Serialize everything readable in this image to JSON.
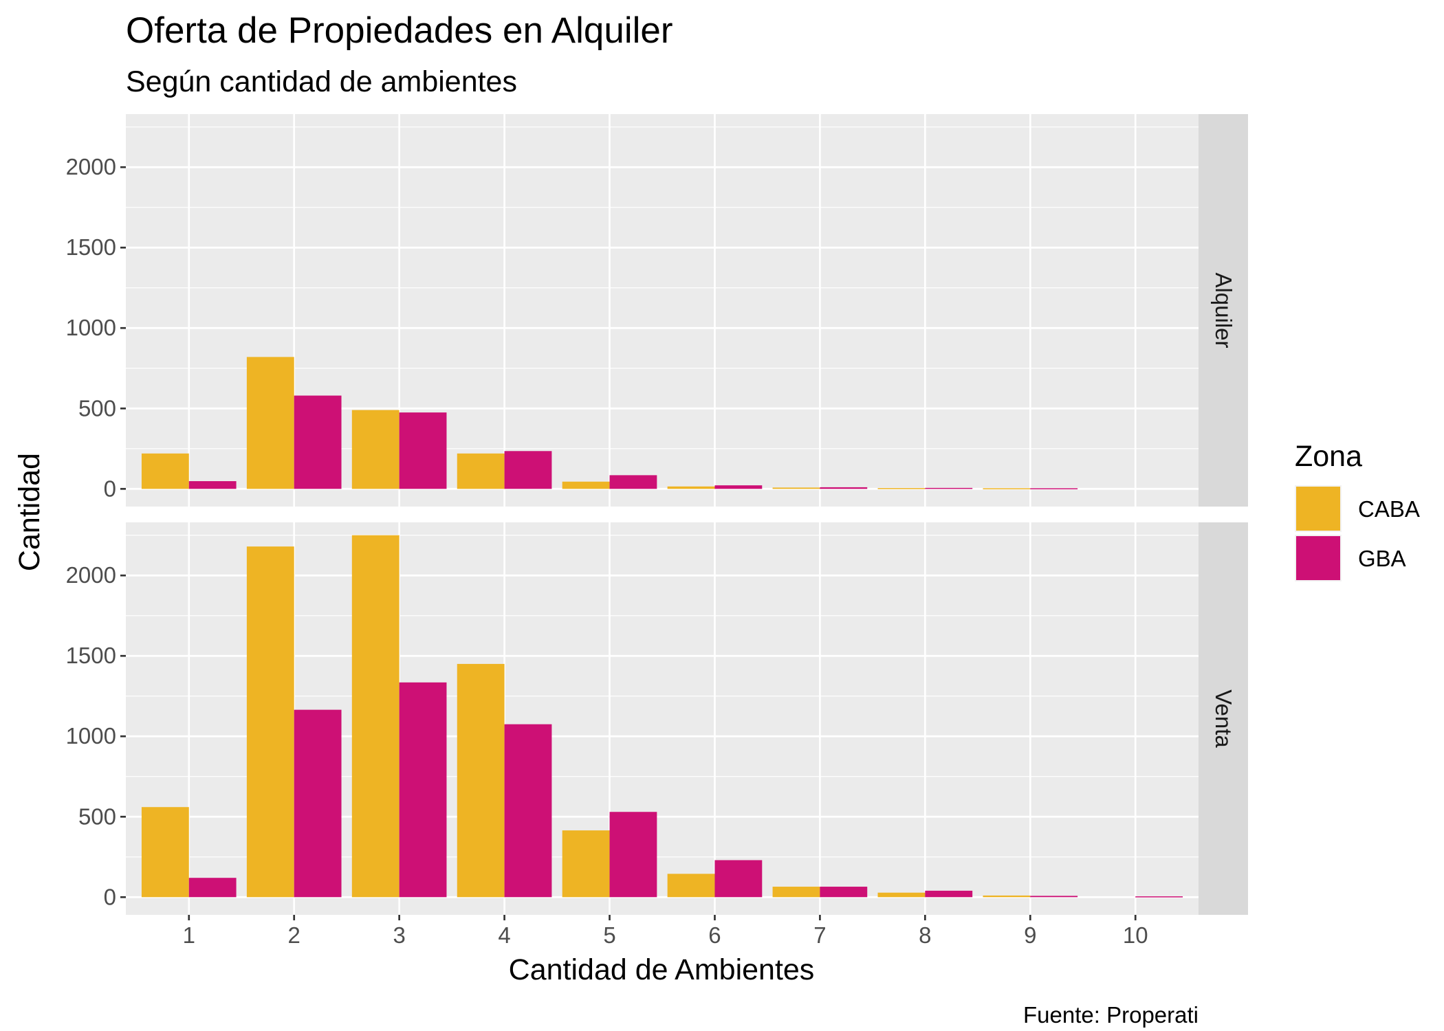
{
  "chart_data": {
    "type": "bar",
    "title": "Oferta de Propiedades en Alquiler",
    "subtitle": "Según cantidad de ambientes",
    "xlabel": "Cantidad de Ambientes",
    "ylabel": "Cantidad",
    "caption": "Fuente: Properati",
    "categories": [
      "1",
      "2",
      "3",
      "4",
      "5",
      "6",
      "7",
      "8",
      "9",
      "10"
    ],
    "ylim": [
      -110,
      2330
    ],
    "yticks": [
      0,
      500,
      1000,
      1500,
      2000
    ],
    "ytick_labels": [
      "0",
      "500",
      "1000",
      "1500",
      "2000"
    ],
    "grid": true,
    "legend": {
      "title": "Zona",
      "position": "right",
      "entries": [
        {
          "label": "CABA",
          "color": "#EEB424"
        },
        {
          "label": "GBA",
          "color": "#CD1075"
        }
      ]
    },
    "facets": [
      {
        "name": "Alquiler",
        "series": [
          {
            "name": "CABA",
            "color": "#EEB424",
            "values": [
              220,
              820,
              490,
              220,
              45,
              15,
              8,
              5,
              4,
              0
            ]
          },
          {
            "name": "GBA",
            "color": "#CD1075",
            "values": [
              48,
              580,
              475,
              235,
              85,
              22,
              10,
              6,
              4,
              0
            ]
          }
        ]
      },
      {
        "name": "Venta",
        "series": [
          {
            "name": "CABA",
            "color": "#EEB424",
            "values": [
              560,
              2180,
              2250,
              1450,
              415,
              145,
              65,
              28,
              10,
              0
            ]
          },
          {
            "name": "GBA",
            "color": "#CD1075",
            "values": [
              120,
              1165,
              1335,
              1075,
              530,
              230,
              65,
              40,
              8,
              5
            ]
          }
        ]
      }
    ]
  }
}
